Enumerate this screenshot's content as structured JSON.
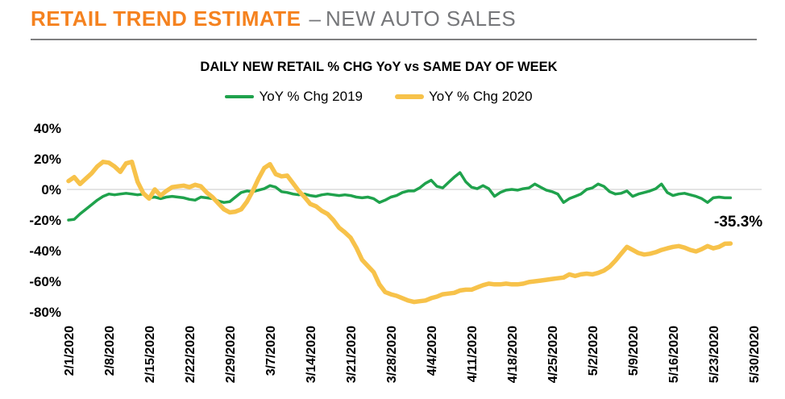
{
  "header": {
    "title_primary": "RETAIL TREND ESTIMATE",
    "title_separator": "–",
    "title_secondary": "NEW AUTO SALES",
    "accent_color": "#F5821F",
    "secondary_color": "#76777A"
  },
  "chart_data": {
    "type": "line",
    "title": "DAILY NEW RETAIL % CHG YoY vs SAME DAY OF WEEK",
    "xlabel": "",
    "ylabel": "",
    "ylim": [
      -80,
      40
    ],
    "grid": "horizontal baseline at 0% only",
    "grid_color": "#DBDBDB",
    "legend_position": "top",
    "x_unit": "day",
    "x_start_date": "2/1/2020",
    "y_ticks": [
      "40%",
      "20%",
      "0%",
      "-20%",
      "-40%",
      "-60%",
      "-80%"
    ],
    "y_tick_values": [
      40,
      20,
      0,
      -20,
      -40,
      -60,
      -80
    ],
    "x_ticks": [
      "2/1/2020",
      "2/8/2020",
      "2/15/2020",
      "2/22/2020",
      "2/29/2020",
      "3/7/2020",
      "3/14/2020",
      "3/21/2020",
      "3/28/2020",
      "4/4/2020",
      "4/11/2020",
      "4/18/2020",
      "4/25/2020",
      "5/2/2020",
      "5/9/2020",
      "5/16/2020",
      "5/23/2020",
      "5/30/2020"
    ],
    "x_tick_day_index": [
      0,
      7,
      14,
      21,
      28,
      35,
      42,
      49,
      56,
      63,
      70,
      77,
      84,
      91,
      98,
      105,
      112,
      119
    ],
    "annotation": {
      "text": "-35.3%",
      "series": "YoY % Chg 2020",
      "at": "last point (5/26/2020)"
    },
    "series": [
      {
        "name": "YoY % Chg 2019",
        "color": "#1FA24C",
        "stroke_width": 3.5,
        "values": [
          -20,
          -19.5,
          -16,
          -13,
          -10,
          -7,
          -4.5,
          -3,
          -3.5,
          -3,
          -2.5,
          -3,
          -3.5,
          -3,
          -5.5,
          -5,
          -6,
          -5,
          -4.5,
          -5,
          -5.5,
          -6.5,
          -7,
          -5,
          -5.5,
          -6,
          -7.5,
          -8.5,
          -8,
          -5,
          -2,
          -1,
          -1.5,
          -0.5,
          0.5,
          2.5,
          1.5,
          -1.5,
          -2,
          -3,
          -3.5,
          -3,
          -4,
          -4.5,
          -3.5,
          -3,
          -3.5,
          -4,
          -3.5,
          -4,
          -5,
          -5.5,
          -5,
          -6,
          -8.5,
          -7,
          -5,
          -4,
          -2,
          -1,
          -1,
          1,
          4,
          6,
          2,
          1,
          4.5,
          8,
          11,
          5,
          1.5,
          0.5,
          2.5,
          0.5,
          -4.5,
          -2,
          -0.5,
          0,
          -0.5,
          0.5,
          1,
          3.5,
          1.5,
          -0.5,
          -1.5,
          -3,
          -8.5,
          -6,
          -4.5,
          -3,
          0,
          1,
          3.5,
          2,
          -1.5,
          -3,
          -2.5,
          -1,
          -4.5,
          -3,
          -2,
          -1,
          0.5,
          3.5,
          -2,
          -4,
          -3,
          -2.5,
          -3.5,
          -4.5,
          -6,
          -8.5,
          -5.5,
          -5,
          -5.5,
          -5.5
        ]
      },
      {
        "name": "YoY % Chg 2020",
        "color": "#F7C24A",
        "stroke_width": 5.5,
        "values": [
          5.5,
          8,
          3.5,
          7,
          10.5,
          15,
          18,
          17.5,
          15,
          11.5,
          17,
          18,
          5,
          -2.5,
          -6,
          0,
          -4,
          -1,
          1.5,
          2,
          2.5,
          1.5,
          3,
          2,
          -2,
          -5,
          -9,
          -13,
          -15,
          -14.5,
          -13,
          -8,
          -1,
          7,
          14,
          16.5,
          10,
          8.5,
          9,
          4,
          -1,
          -5,
          -9.5,
          -11,
          -14,
          -16,
          -20,
          -25,
          -28,
          -31.5,
          -38,
          -46,
          -50,
          -54,
          -62,
          -67,
          -68.5,
          -69.5,
          -71,
          -72.5,
          -73.5,
          -73,
          -72.5,
          -71,
          -70,
          -68.5,
          -68,
          -67.5,
          -66,
          -65.5,
          -65.5,
          -64,
          -62.5,
          -61.5,
          -62,
          -62,
          -61.5,
          -62,
          -62,
          -61.5,
          -60.5,
          -60,
          -59.5,
          -59,
          -58.5,
          -58,
          -57.5,
          -55.5,
          -56.5,
          -55.5,
          -55,
          -55.5,
          -54.5,
          -53,
          -50.5,
          -46.5,
          -42,
          -37.5,
          -39.5,
          -41.5,
          -42.5,
          -42,
          -41,
          -39.5,
          -38.5,
          -37.5,
          -37,
          -38,
          -39.5,
          -40.5,
          -39,
          -37,
          -38.5,
          -37.5,
          -35.5,
          -35.3
        ]
      }
    ]
  }
}
